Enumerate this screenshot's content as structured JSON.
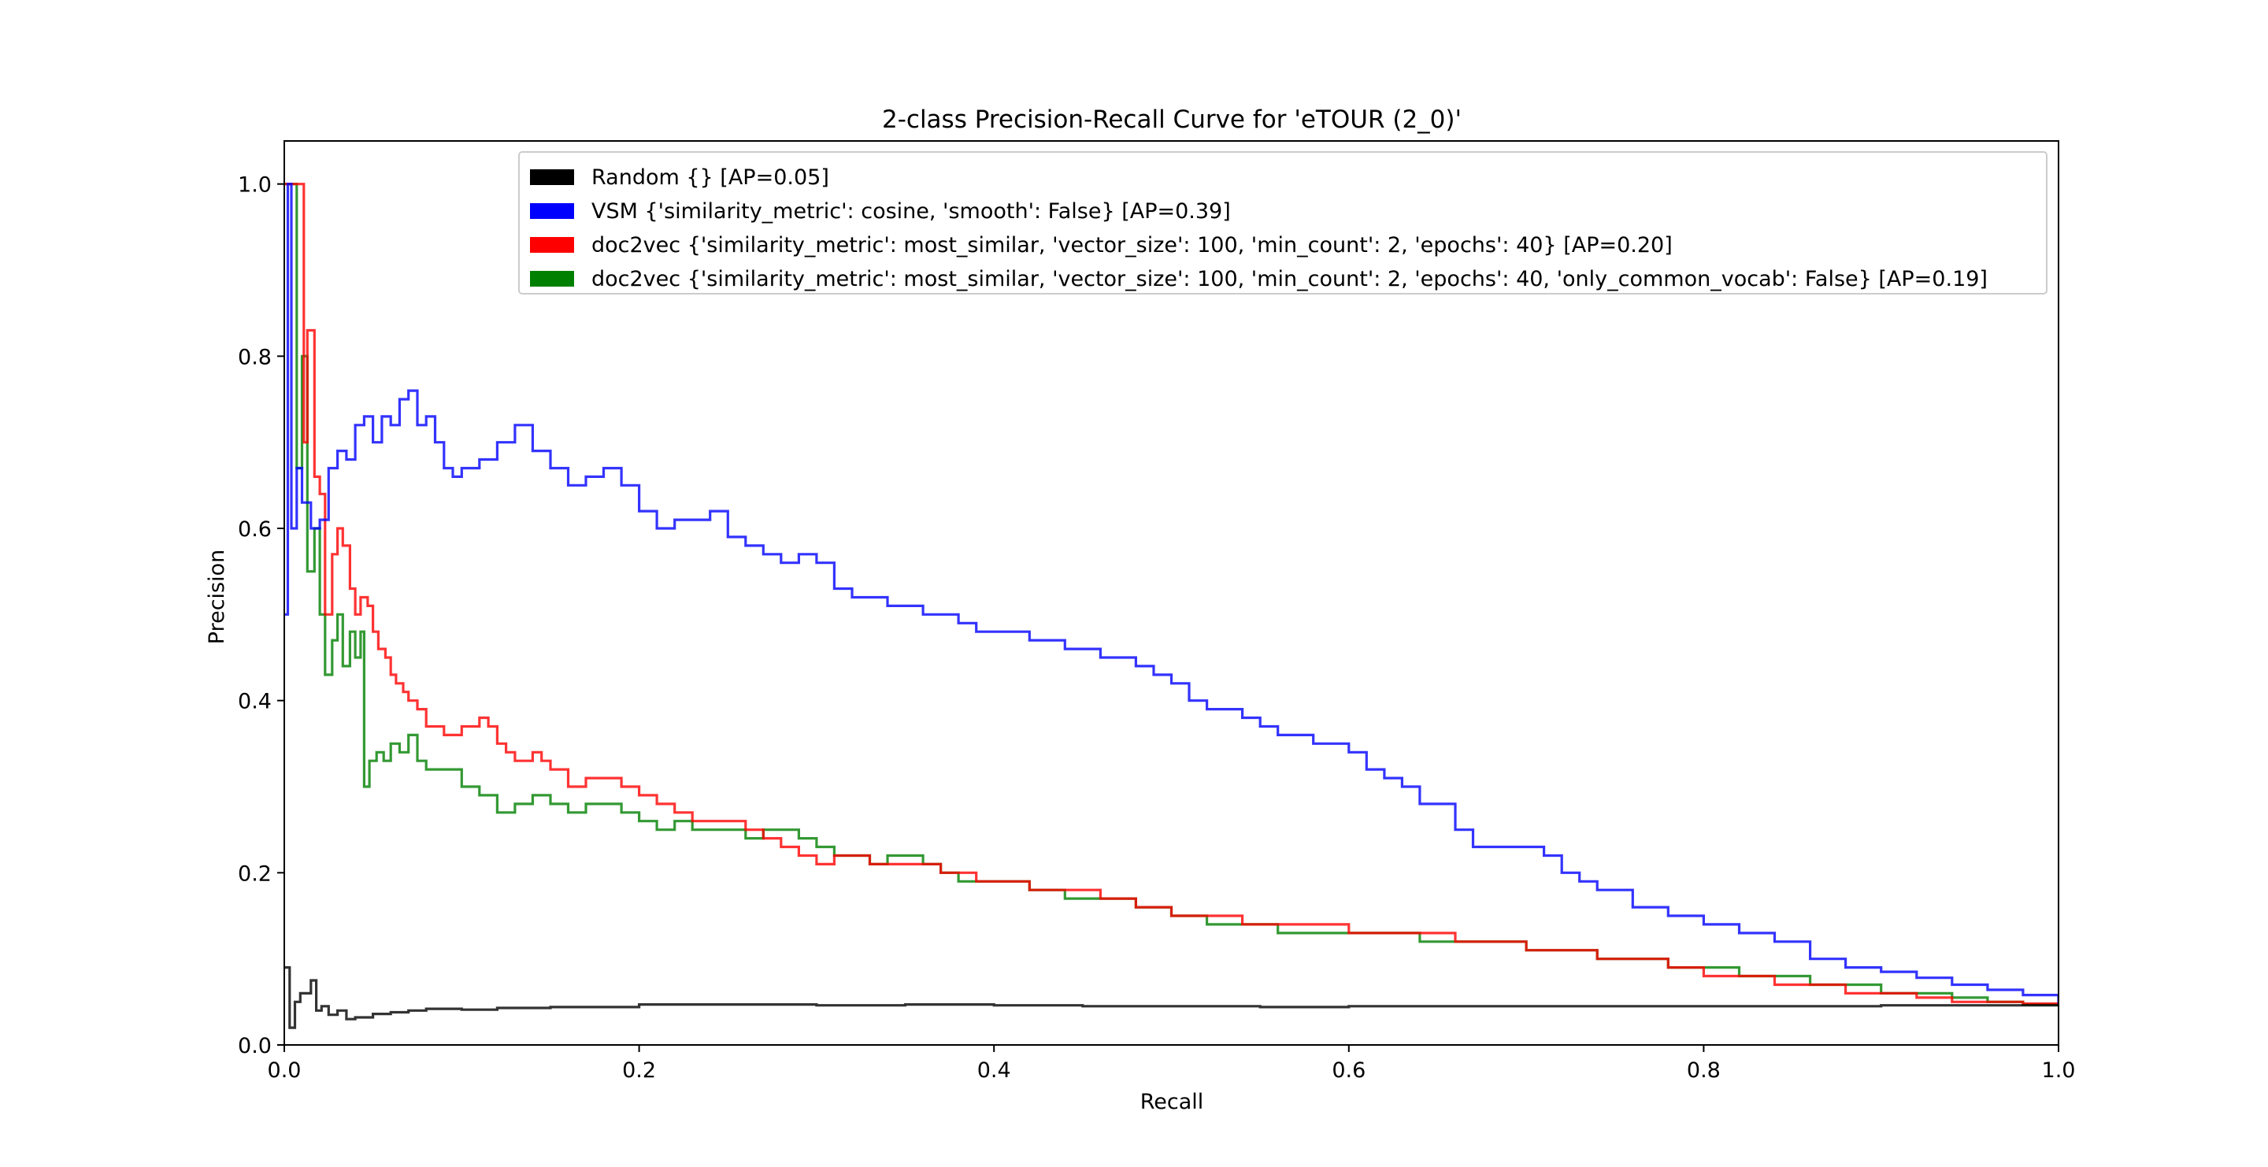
{
  "chart_data": {
    "type": "line",
    "title": "2-class Precision-Recall Curve for 'eTOUR (2_0)'",
    "xlabel": "Recall",
    "ylabel": "Precision",
    "xlim": [
      0.0,
      1.0
    ],
    "ylim": [
      0.0,
      1.05
    ],
    "xticks": [
      "0.0",
      "0.2",
      "0.4",
      "0.6",
      "0.8",
      "1.0"
    ],
    "yticks": [
      "0.0",
      "0.2",
      "0.4",
      "0.6",
      "0.8",
      "1.0"
    ],
    "grid": false,
    "legend_position": "upper-right",
    "series": [
      {
        "name": "Random {} [AP=0.05]",
        "color": "#000000",
        "points": [
          [
            0.0,
            0.09
          ],
          [
            0.003,
            0.02
          ],
          [
            0.006,
            0.05
          ],
          [
            0.009,
            0.06
          ],
          [
            0.012,
            0.06
          ],
          [
            0.015,
            0.075
          ],
          [
            0.018,
            0.04
          ],
          [
            0.021,
            0.045
          ],
          [
            0.025,
            0.035
          ],
          [
            0.03,
            0.04
          ],
          [
            0.035,
            0.03
          ],
          [
            0.04,
            0.032
          ],
          [
            0.05,
            0.036
          ],
          [
            0.06,
            0.038
          ],
          [
            0.07,
            0.04
          ],
          [
            0.08,
            0.042
          ],
          [
            0.1,
            0.041
          ],
          [
            0.12,
            0.043
          ],
          [
            0.15,
            0.044
          ],
          [
            0.2,
            0.047
          ],
          [
            0.25,
            0.047
          ],
          [
            0.3,
            0.046
          ],
          [
            0.35,
            0.047
          ],
          [
            0.4,
            0.046
          ],
          [
            0.45,
            0.045
          ],
          [
            0.5,
            0.045
          ],
          [
            0.55,
            0.044
          ],
          [
            0.6,
            0.045
          ],
          [
            0.65,
            0.045
          ],
          [
            0.7,
            0.045
          ],
          [
            0.75,
            0.045
          ],
          [
            0.8,
            0.045
          ],
          [
            0.85,
            0.045
          ],
          [
            0.9,
            0.046
          ],
          [
            0.95,
            0.046
          ],
          [
            1.0,
            0.046
          ]
        ]
      },
      {
        "name": "VSM {'similarity_metric': cosine, 'smooth': False} [AP=0.39]",
        "color": "#0000ff",
        "points": [
          [
            0.0,
            0.5
          ],
          [
            0.002,
            1.0
          ],
          [
            0.004,
            0.6
          ],
          [
            0.007,
            0.67
          ],
          [
            0.01,
            0.63
          ],
          [
            0.015,
            0.6
          ],
          [
            0.02,
            0.61
          ],
          [
            0.025,
            0.67
          ],
          [
            0.03,
            0.69
          ],
          [
            0.035,
            0.68
          ],
          [
            0.04,
            0.72
          ],
          [
            0.045,
            0.73
          ],
          [
            0.05,
            0.7
          ],
          [
            0.055,
            0.73
          ],
          [
            0.06,
            0.72
          ],
          [
            0.065,
            0.75
          ],
          [
            0.07,
            0.76
          ],
          [
            0.075,
            0.72
          ],
          [
            0.08,
            0.73
          ],
          [
            0.085,
            0.7
          ],
          [
            0.09,
            0.67
          ],
          [
            0.095,
            0.66
          ],
          [
            0.1,
            0.67
          ],
          [
            0.11,
            0.68
          ],
          [
            0.12,
            0.7
          ],
          [
            0.13,
            0.72
          ],
          [
            0.14,
            0.69
          ],
          [
            0.15,
            0.67
          ],
          [
            0.16,
            0.65
          ],
          [
            0.17,
            0.66
          ],
          [
            0.18,
            0.67
          ],
          [
            0.19,
            0.65
          ],
          [
            0.2,
            0.62
          ],
          [
            0.21,
            0.6
          ],
          [
            0.22,
            0.61
          ],
          [
            0.23,
            0.61
          ],
          [
            0.24,
            0.62
          ],
          [
            0.25,
            0.59
          ],
          [
            0.26,
            0.58
          ],
          [
            0.27,
            0.57
          ],
          [
            0.28,
            0.56
          ],
          [
            0.29,
            0.57
          ],
          [
            0.3,
            0.56
          ],
          [
            0.31,
            0.53
          ],
          [
            0.32,
            0.52
          ],
          [
            0.33,
            0.52
          ],
          [
            0.34,
            0.51
          ],
          [
            0.35,
            0.51
          ],
          [
            0.36,
            0.5
          ],
          [
            0.37,
            0.5
          ],
          [
            0.38,
            0.49
          ],
          [
            0.39,
            0.48
          ],
          [
            0.4,
            0.48
          ],
          [
            0.42,
            0.47
          ],
          [
            0.44,
            0.46
          ],
          [
            0.45,
            0.46
          ],
          [
            0.46,
            0.45
          ],
          [
            0.48,
            0.44
          ],
          [
            0.49,
            0.43
          ],
          [
            0.5,
            0.42
          ],
          [
            0.51,
            0.4
          ],
          [
            0.52,
            0.39
          ],
          [
            0.54,
            0.38
          ],
          [
            0.55,
            0.37
          ],
          [
            0.56,
            0.36
          ],
          [
            0.58,
            0.35
          ],
          [
            0.6,
            0.34
          ],
          [
            0.61,
            0.32
          ],
          [
            0.62,
            0.31
          ],
          [
            0.63,
            0.3
          ],
          [
            0.64,
            0.28
          ],
          [
            0.66,
            0.25
          ],
          [
            0.67,
            0.23
          ],
          [
            0.7,
            0.23
          ],
          [
            0.71,
            0.22
          ],
          [
            0.72,
            0.2
          ],
          [
            0.73,
            0.19
          ],
          [
            0.74,
            0.18
          ],
          [
            0.76,
            0.16
          ],
          [
            0.78,
            0.15
          ],
          [
            0.8,
            0.14
          ],
          [
            0.82,
            0.13
          ],
          [
            0.84,
            0.12
          ],
          [
            0.86,
            0.1
          ],
          [
            0.88,
            0.09
          ],
          [
            0.9,
            0.085
          ],
          [
            0.92,
            0.078
          ],
          [
            0.94,
            0.07
          ],
          [
            0.96,
            0.064
          ],
          [
            0.98,
            0.058
          ],
          [
            1.0,
            0.048
          ]
        ]
      },
      {
        "name": "doc2vec {'similarity_metric': most_similar, 'vector_size': 100, 'min_count': 2, 'epochs': 40} [AP=0.20]",
        "color": "#ff0000",
        "points": [
          [
            0.0,
            1.0
          ],
          [
            0.01,
            1.0
          ],
          [
            0.011,
            0.7
          ],
          [
            0.013,
            0.83
          ],
          [
            0.017,
            0.66
          ],
          [
            0.02,
            0.64
          ],
          [
            0.023,
            0.5
          ],
          [
            0.027,
            0.57
          ],
          [
            0.03,
            0.6
          ],
          [
            0.033,
            0.58
          ],
          [
            0.037,
            0.53
          ],
          [
            0.04,
            0.5
          ],
          [
            0.043,
            0.52
          ],
          [
            0.047,
            0.51
          ],
          [
            0.05,
            0.48
          ],
          [
            0.053,
            0.46
          ],
          [
            0.057,
            0.45
          ],
          [
            0.06,
            0.43
          ],
          [
            0.063,
            0.42
          ],
          [
            0.067,
            0.41
          ],
          [
            0.07,
            0.4
          ],
          [
            0.075,
            0.39
          ],
          [
            0.08,
            0.37
          ],
          [
            0.09,
            0.36
          ],
          [
            0.1,
            0.37
          ],
          [
            0.11,
            0.38
          ],
          [
            0.115,
            0.37
          ],
          [
            0.12,
            0.35
          ],
          [
            0.125,
            0.34
          ],
          [
            0.13,
            0.33
          ],
          [
            0.14,
            0.34
          ],
          [
            0.145,
            0.33
          ],
          [
            0.15,
            0.32
          ],
          [
            0.16,
            0.3
          ],
          [
            0.17,
            0.31
          ],
          [
            0.18,
            0.31
          ],
          [
            0.19,
            0.3
          ],
          [
            0.2,
            0.29
          ],
          [
            0.21,
            0.28
          ],
          [
            0.22,
            0.27
          ],
          [
            0.23,
            0.26
          ],
          [
            0.24,
            0.26
          ],
          [
            0.25,
            0.26
          ],
          [
            0.26,
            0.25
          ],
          [
            0.27,
            0.24
          ],
          [
            0.28,
            0.23
          ],
          [
            0.29,
            0.22
          ],
          [
            0.3,
            0.21
          ],
          [
            0.31,
            0.22
          ],
          [
            0.32,
            0.22
          ],
          [
            0.33,
            0.21
          ],
          [
            0.34,
            0.21
          ],
          [
            0.35,
            0.21
          ],
          [
            0.36,
            0.21
          ],
          [
            0.37,
            0.2
          ],
          [
            0.38,
            0.2
          ],
          [
            0.39,
            0.19
          ],
          [
            0.4,
            0.19
          ],
          [
            0.42,
            0.18
          ],
          [
            0.44,
            0.18
          ],
          [
            0.46,
            0.17
          ],
          [
            0.48,
            0.16
          ],
          [
            0.5,
            0.15
          ],
          [
            0.52,
            0.15
          ],
          [
            0.54,
            0.14
          ],
          [
            0.56,
            0.14
          ],
          [
            0.58,
            0.14
          ],
          [
            0.6,
            0.13
          ],
          [
            0.62,
            0.13
          ],
          [
            0.64,
            0.13
          ],
          [
            0.66,
            0.12
          ],
          [
            0.68,
            0.12
          ],
          [
            0.7,
            0.11
          ],
          [
            0.72,
            0.11
          ],
          [
            0.74,
            0.1
          ],
          [
            0.76,
            0.1
          ],
          [
            0.78,
            0.09
          ],
          [
            0.8,
            0.08
          ],
          [
            0.82,
            0.08
          ],
          [
            0.84,
            0.07
          ],
          [
            0.86,
            0.07
          ],
          [
            0.88,
            0.06
          ],
          [
            0.9,
            0.06
          ],
          [
            0.92,
            0.055
          ],
          [
            0.94,
            0.05
          ],
          [
            0.96,
            0.05
          ],
          [
            0.98,
            0.048
          ],
          [
            1.0,
            0.046
          ]
        ]
      },
      {
        "name": "doc2vec {'similarity_metric': most_similar, 'vector_size': 100, 'min_count': 2, 'epochs': 40, 'only_common_vocab': False} [AP=0.19]",
        "color": "#008000",
        "points": [
          [
            0.0,
            1.0
          ],
          [
            0.005,
            1.0
          ],
          [
            0.007,
            0.67
          ],
          [
            0.01,
            0.8
          ],
          [
            0.013,
            0.55
          ],
          [
            0.017,
            0.6
          ],
          [
            0.02,
            0.5
          ],
          [
            0.023,
            0.43
          ],
          [
            0.027,
            0.47
          ],
          [
            0.03,
            0.5
          ],
          [
            0.033,
            0.44
          ],
          [
            0.037,
            0.48
          ],
          [
            0.04,
            0.45
          ],
          [
            0.043,
            0.48
          ],
          [
            0.045,
            0.3
          ],
          [
            0.048,
            0.33
          ],
          [
            0.052,
            0.34
          ],
          [
            0.056,
            0.33
          ],
          [
            0.06,
            0.35
          ],
          [
            0.065,
            0.34
          ],
          [
            0.07,
            0.36
          ],
          [
            0.075,
            0.33
          ],
          [
            0.08,
            0.32
          ],
          [
            0.09,
            0.32
          ],
          [
            0.1,
            0.3
          ],
          [
            0.11,
            0.29
          ],
          [
            0.12,
            0.27
          ],
          [
            0.13,
            0.28
          ],
          [
            0.14,
            0.29
          ],
          [
            0.15,
            0.28
          ],
          [
            0.16,
            0.27
          ],
          [
            0.17,
            0.28
          ],
          [
            0.18,
            0.28
          ],
          [
            0.19,
            0.27
          ],
          [
            0.2,
            0.26
          ],
          [
            0.21,
            0.25
          ],
          [
            0.22,
            0.26
          ],
          [
            0.23,
            0.25
          ],
          [
            0.24,
            0.25
          ],
          [
            0.25,
            0.25
          ],
          [
            0.26,
            0.24
          ],
          [
            0.27,
            0.25
          ],
          [
            0.28,
            0.25
          ],
          [
            0.29,
            0.24
          ],
          [
            0.3,
            0.23
          ],
          [
            0.31,
            0.22
          ],
          [
            0.32,
            0.22
          ],
          [
            0.33,
            0.21
          ],
          [
            0.34,
            0.22
          ],
          [
            0.35,
            0.22
          ],
          [
            0.36,
            0.21
          ],
          [
            0.37,
            0.2
          ],
          [
            0.38,
            0.19
          ],
          [
            0.39,
            0.19
          ],
          [
            0.4,
            0.19
          ],
          [
            0.42,
            0.18
          ],
          [
            0.44,
            0.17
          ],
          [
            0.46,
            0.17
          ],
          [
            0.48,
            0.16
          ],
          [
            0.5,
            0.15
          ],
          [
            0.52,
            0.14
          ],
          [
            0.54,
            0.14
          ],
          [
            0.56,
            0.13
          ],
          [
            0.58,
            0.13
          ],
          [
            0.6,
            0.13
          ],
          [
            0.62,
            0.13
          ],
          [
            0.64,
            0.12
          ],
          [
            0.66,
            0.12
          ],
          [
            0.68,
            0.12
          ],
          [
            0.7,
            0.11
          ],
          [
            0.72,
            0.11
          ],
          [
            0.74,
            0.1
          ],
          [
            0.76,
            0.1
          ],
          [
            0.78,
            0.09
          ],
          [
            0.8,
            0.09
          ],
          [
            0.82,
            0.08
          ],
          [
            0.84,
            0.08
          ],
          [
            0.86,
            0.07
          ],
          [
            0.88,
            0.07
          ],
          [
            0.9,
            0.06
          ],
          [
            0.92,
            0.06
          ],
          [
            0.94,
            0.055
          ],
          [
            0.96,
            0.05
          ],
          [
            0.98,
            0.047
          ],
          [
            1.0,
            0.046
          ]
        ]
      }
    ]
  }
}
